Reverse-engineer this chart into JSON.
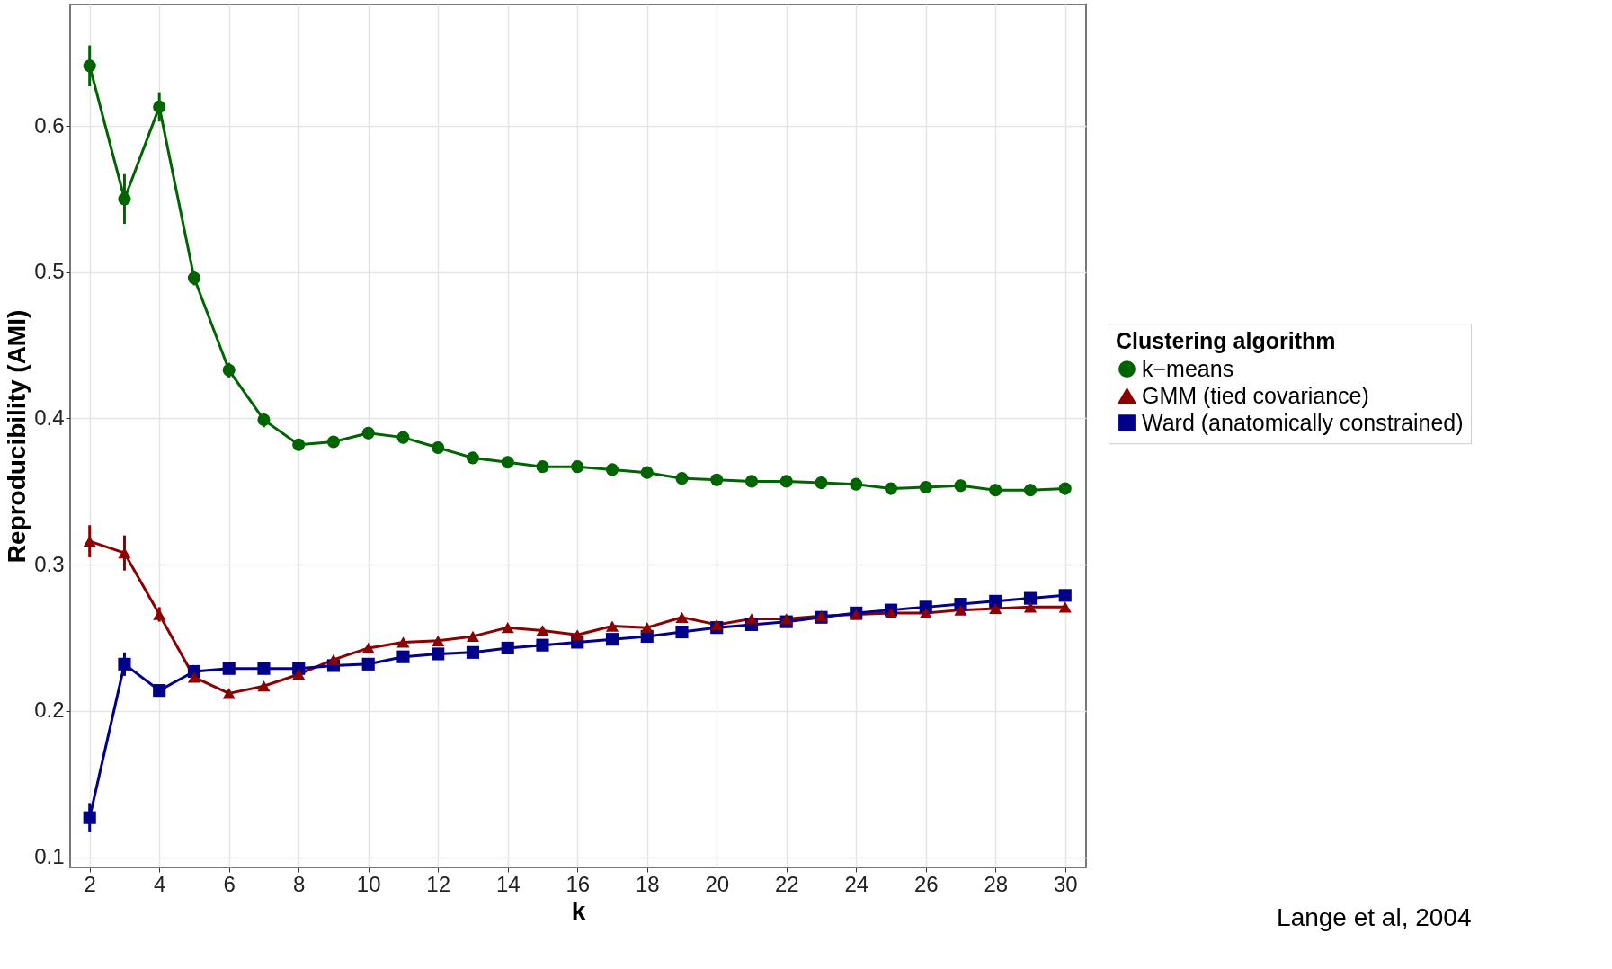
{
  "chart_data": {
    "type": "line",
    "xlabel": "k",
    "ylabel": "Reproducibility (AMI)",
    "legend_title": "Clustering algorithm",
    "x": [
      2,
      3,
      4,
      5,
      6,
      7,
      8,
      9,
      10,
      11,
      12,
      13,
      14,
      15,
      16,
      17,
      18,
      19,
      20,
      21,
      22,
      23,
      24,
      25,
      26,
      27,
      28,
      29,
      30
    ],
    "series": [
      {
        "name": "k−means",
        "color": "#006400",
        "marker": "circle",
        "values": [
          0.641,
          0.55,
          0.613,
          0.496,
          0.433,
          0.399,
          0.382,
          0.384,
          0.39,
          0.387,
          0.38,
          0.373,
          0.37,
          0.367,
          0.367,
          0.365,
          0.363,
          0.359,
          0.358,
          0.357,
          0.357,
          0.356,
          0.355,
          0.352,
          0.353,
          0.354,
          0.351,
          0.351,
          0.352
        ],
        "errors": [
          0.014,
          0.017,
          0.01,
          0.005,
          0.005,
          0.005,
          0.004,
          0.004,
          0.004,
          0.004,
          0.004,
          0.004,
          0.004,
          0.004,
          0.004,
          0.004,
          0.004,
          0.004,
          0.004,
          0.004,
          0.004,
          0.004,
          0.004,
          0.004,
          0.004,
          0.004,
          0.004,
          0.004,
          0.004
        ]
      },
      {
        "name": "GMM (tied covariance)",
        "color": "#8b0000",
        "marker": "triangle",
        "values": [
          0.316,
          0.308,
          0.266,
          0.223,
          0.212,
          0.217,
          0.225,
          0.235,
          0.243,
          0.247,
          0.248,
          0.251,
          0.257,
          0.255,
          0.252,
          0.258,
          0.257,
          0.264,
          0.259,
          0.263,
          0.263,
          0.265,
          0.266,
          0.267,
          0.267,
          0.269,
          0.27,
          0.271,
          0.271
        ],
        "errors": [
          0.011,
          0.012,
          0.005,
          null,
          null,
          null,
          null,
          null,
          null,
          null,
          null,
          null,
          null,
          null,
          null,
          null,
          null,
          null,
          null,
          null,
          null,
          null,
          null,
          null,
          null,
          null,
          null,
          null,
          null
        ]
      },
      {
        "name": "Ward (anatomically constrained)",
        "color": "#00008b",
        "marker": "square",
        "values": [
          0.127,
          0.232,
          0.214,
          0.227,
          0.229,
          0.229,
          0.229,
          0.231,
          0.232,
          0.237,
          0.239,
          0.24,
          0.243,
          0.245,
          0.247,
          0.249,
          0.251,
          0.254,
          0.257,
          0.259,
          0.261,
          0.264,
          0.267,
          0.269,
          0.271,
          0.273,
          0.275,
          0.277,
          0.279
        ],
        "errors": [
          0.01,
          0.008,
          null,
          null,
          null,
          null,
          null,
          null,
          null,
          null,
          null,
          null,
          null,
          null,
          null,
          null,
          null,
          null,
          null,
          null,
          null,
          null,
          null,
          null,
          null,
          null,
          null,
          null,
          null
        ]
      }
    ],
    "xlim": [
      1.44,
      30.6
    ],
    "ylim": [
      0.093,
      0.683
    ],
    "xticks": [
      2,
      4,
      6,
      8,
      10,
      12,
      14,
      16,
      18,
      20,
      22,
      24,
      26,
      28,
      30
    ],
    "yticks": [
      0.1,
      0.2,
      0.3,
      0.4,
      0.5,
      0.6
    ],
    "grid": true,
    "legend": "right",
    "line_style": "solid",
    "annotations": [
      "Lange et al, 2004"
    ]
  }
}
